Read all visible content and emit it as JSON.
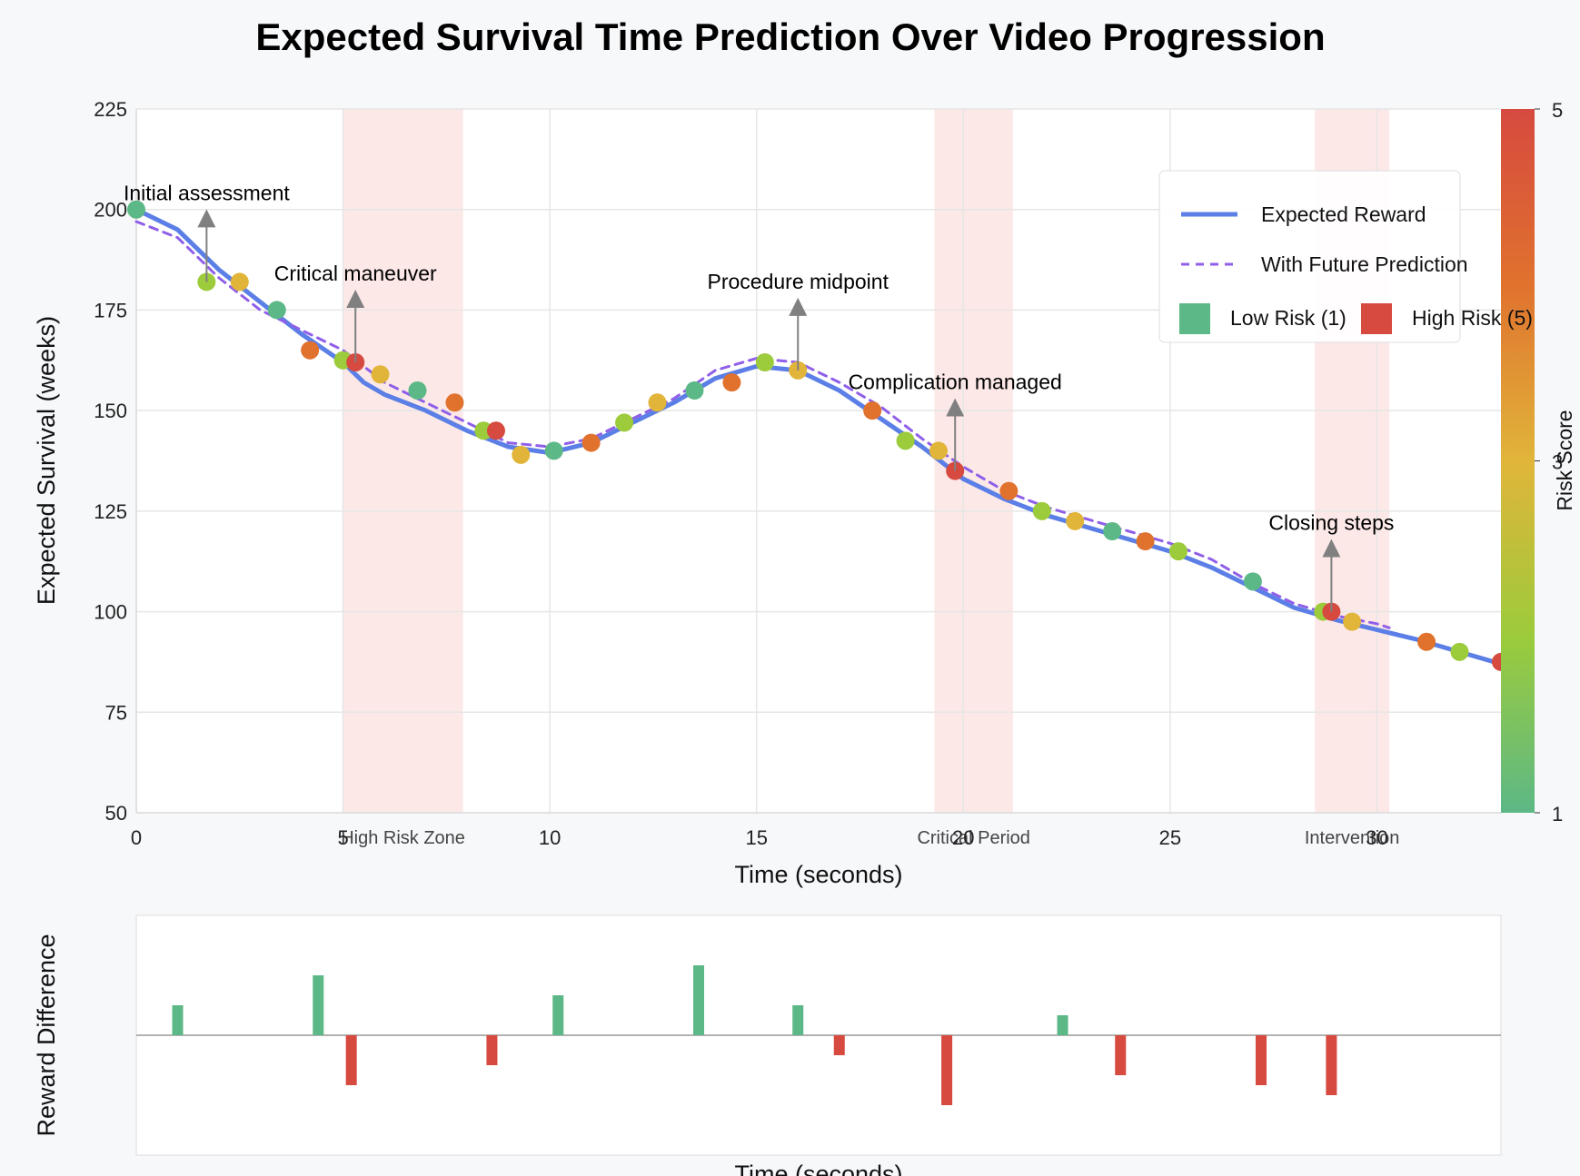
{
  "title": "Expected Survival Time Prediction Over Video Progression",
  "chart_data": [
    {
      "type": "line",
      "xlabel": "Time (seconds)",
      "ylabel": "Expected Survival (weeks)",
      "xlim": [
        0,
        33
      ],
      "ylim": [
        50,
        225
      ],
      "xticks": [
        0,
        5,
        10,
        15,
        20,
        25,
        30
      ],
      "yticks": [
        50,
        75,
        100,
        125,
        150,
        175,
        200,
        225
      ],
      "grid": true,
      "legend_position": "top-right",
      "series": [
        {
          "name": "Expected Reward",
          "style": "solid",
          "color": "#5b7fe6",
          "x": [
            0,
            1,
            2,
            3,
            4,
            5,
            5.5,
            6,
            7,
            8,
            9,
            10,
            11,
            12,
            13,
            14,
            15,
            16,
            17,
            18,
            19,
            20,
            21,
            22,
            23,
            24,
            25,
            26,
            27,
            28,
            29,
            30,
            31,
            32,
            33
          ],
          "y": [
            200,
            195,
            185,
            177,
            169,
            162,
            157,
            154,
            150,
            145,
            141,
            139.5,
            142,
            147,
            152,
            158,
            161,
            160,
            155,
            148,
            141,
            133,
            128,
            124,
            121,
            118,
            115,
            111,
            106,
            101,
            98,
            95.5,
            93,
            90,
            87
          ]
        },
        {
          "name": "With Future Prediction",
          "style": "dashed",
          "color": "#8f5fe8",
          "x": [
            0,
            1,
            2,
            3,
            4,
            5,
            6,
            7,
            8,
            9,
            10,
            11,
            12,
            13,
            14,
            15,
            16,
            17,
            18,
            19,
            20,
            21,
            22,
            23,
            24,
            25,
            26,
            27,
            28,
            29,
            30,
            30.3
          ],
          "y": [
            197,
            193,
            183,
            175,
            170,
            165,
            157,
            152,
            147,
            142,
            141,
            143,
            148,
            153,
            160,
            163,
            162,
            157,
            151,
            143,
            136,
            130,
            126,
            123,
            120,
            117,
            113,
            107,
            102,
            99,
            97,
            96
          ]
        }
      ],
      "risk_points": {
        "x": [
          0,
          1.7,
          2.5,
          3.4,
          4.2,
          5.0,
          5.3,
          5.9,
          6.8,
          7.7,
          8.4,
          8.7,
          9.3,
          10.1,
          11.0,
          11.8,
          12.6,
          13.5,
          14.4,
          15.2,
          16.0,
          17.8,
          18.6,
          19.4,
          19.8,
          21.1,
          21.9,
          22.7,
          23.6,
          24.4,
          25.2,
          27.0,
          28.7,
          28.9,
          29.4,
          31.2,
          32.0,
          33.0
        ],
        "y": [
          200,
          182,
          182,
          175,
          165,
          162.5,
          162,
          159,
          155,
          152,
          145,
          145,
          139,
          140,
          142,
          147,
          152,
          155,
          157,
          162,
          160,
          150,
          142.5,
          140,
          135,
          130,
          125,
          122.5,
          120,
          117.5,
          115,
          107.5,
          100,
          100,
          97.5,
          92.5,
          90,
          87.5
        ],
        "risk": [
          1,
          2,
          3,
          1,
          4,
          2,
          5,
          3,
          1,
          4,
          2,
          5,
          3,
          1,
          4,
          2,
          3,
          1,
          4,
          2,
          3,
          4,
          2,
          3,
          5,
          4,
          2,
          3,
          1,
          4,
          2,
          1,
          2,
          5,
          3,
          4,
          2,
          5
        ]
      },
      "risk_zones": [
        {
          "label": "High Risk Zone",
          "x0": 5.0,
          "x1": 7.9
        },
        {
          "label": "Critical Period",
          "x0": 19.3,
          "x1": 21.2
        },
        {
          "label": "Intervention",
          "x0": 28.5,
          "x1": 30.3
        }
      ],
      "annotations": [
        {
          "text": "Initial assessment",
          "x": 1.7,
          "y": 182
        },
        {
          "text": "Critical maneuver",
          "x": 5.3,
          "y": 162
        },
        {
          "text": "Procedure midpoint",
          "x": 16.0,
          "y": 160
        },
        {
          "text": "Complication managed",
          "x": 19.8,
          "y": 135
        },
        {
          "text": "Closing steps",
          "x": 28.9,
          "y": 100
        }
      ],
      "legend": {
        "expected": "Expected Reward",
        "future": "With Future Prediction",
        "low": "Low Risk (1)",
        "high": "High Risk (5)"
      },
      "colorbar": {
        "label": "Risk Score",
        "min": 1,
        "max": 5,
        "tick_labels": [
          "1",
          "3",
          "5"
        ],
        "colors": [
          "#5cb886",
          "#9ccb3b",
          "#e1b53a",
          "#e0722e",
          "#d64a3f"
        ]
      }
    },
    {
      "type": "bar",
      "xlabel": "Time (seconds)",
      "ylabel": "Reward Difference",
      "xlim": [
        0,
        33
      ],
      "ylim": [
        -12,
        12
      ],
      "zero_line": true,
      "positive_color": "#5cb886",
      "negative_color": "#d64a3f",
      "x": [
        1.0,
        4.4,
        5.2,
        8.6,
        10.2,
        13.6,
        16.0,
        17.0,
        19.6,
        22.4,
        23.8,
        27.2,
        28.9
      ],
      "values": [
        3,
        6,
        -5,
        -3,
        4,
        7,
        3,
        -2,
        -7,
        2,
        -4,
        -5,
        -6
      ]
    }
  ]
}
